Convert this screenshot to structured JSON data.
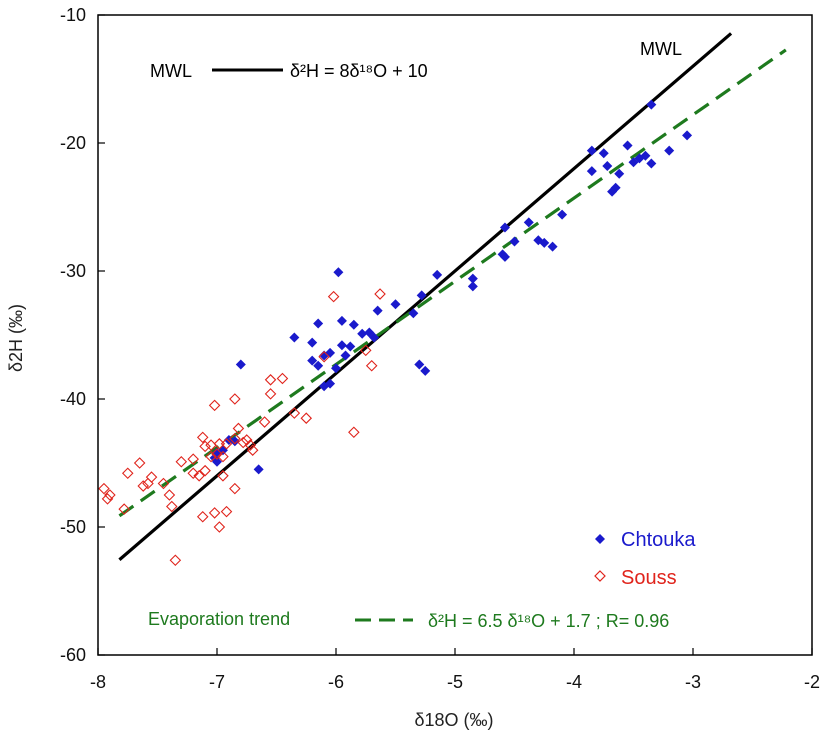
{
  "chart_data": {
    "type": "scatter",
    "xlabel": "δ18O (‰)",
    "ylabel": "δ2H (‰)",
    "xlim": [
      -8,
      -2
    ],
    "ylim": [
      -60,
      -10
    ],
    "x_ticks": [
      -8,
      -7,
      -6,
      -5,
      -4,
      -3,
      -2
    ],
    "y_ticks": [
      -60,
      -50,
      -40,
      -30,
      -20,
      -10
    ],
    "x_tick_labels": [
      "-8",
      "-7",
      "-6",
      "-5",
      "-4",
      "-3",
      "-2"
    ],
    "y_tick_labels": [
      "-60",
      "-50",
      "-40",
      "-30",
      "-20",
      "-10"
    ],
    "grid": false,
    "legend_position": "bottom-right",
    "series": [
      {
        "name": "Chtouka",
        "marker": "filled-diamond",
        "color": "#1a1acc",
        "points": [
          [
            -3.35,
            -17.0
          ],
          [
            -3.05,
            -19.4
          ],
          [
            -3.85,
            -20.6
          ],
          [
            -3.55,
            -20.2
          ],
          [
            -3.75,
            -20.8
          ],
          [
            -3.45,
            -21.2
          ],
          [
            -3.5,
            -21.5
          ],
          [
            -3.4,
            -21.0
          ],
          [
            -3.2,
            -20.6
          ],
          [
            -3.35,
            -21.6
          ],
          [
            -3.72,
            -21.8
          ],
          [
            -3.85,
            -22.2
          ],
          [
            -3.62,
            -22.4
          ],
          [
            -3.65,
            -23.5
          ],
          [
            -3.68,
            -23.8
          ],
          [
            -4.1,
            -25.6
          ],
          [
            -4.25,
            -27.8
          ],
          [
            -4.3,
            -27.6
          ],
          [
            -4.18,
            -28.1
          ],
          [
            -4.5,
            -27.7
          ],
          [
            -4.38,
            -26.2
          ],
          [
            -4.58,
            -26.6
          ],
          [
            -4.6,
            -28.7
          ],
          [
            -4.58,
            -28.9
          ],
          [
            -4.85,
            -30.6
          ],
          [
            -4.85,
            -31.2
          ],
          [
            -5.15,
            -30.3
          ],
          [
            -5.28,
            -31.9
          ],
          [
            -5.35,
            -33.3
          ],
          [
            -5.5,
            -32.6
          ],
          [
            -5.3,
            -37.3
          ],
          [
            -5.25,
            -37.8
          ],
          [
            -5.65,
            -33.1
          ],
          [
            -5.72,
            -34.8
          ],
          [
            -5.78,
            -34.9
          ],
          [
            -5.68,
            -35.2
          ],
          [
            -5.85,
            -34.2
          ],
          [
            -5.95,
            -33.9
          ],
          [
            -5.98,
            -30.1
          ],
          [
            -6.15,
            -34.1
          ],
          [
            -6.2,
            -35.6
          ],
          [
            -6.35,
            -35.2
          ],
          [
            -5.95,
            -35.8
          ],
          [
            -5.88,
            -35.9
          ],
          [
            -5.92,
            -36.6
          ],
          [
            -6.05,
            -36.4
          ],
          [
            -6.1,
            -36.6
          ],
          [
            -6.2,
            -37.0
          ],
          [
            -6.15,
            -37.4
          ],
          [
            -6.0,
            -37.6
          ],
          [
            -6.05,
            -38.8
          ],
          [
            -6.1,
            -39.0
          ],
          [
            -6.8,
            -37.3
          ],
          [
            -6.65,
            -45.5
          ],
          [
            -6.85,
            -43.3
          ],
          [
            -6.9,
            -43.2
          ],
          [
            -6.95,
            -44.0
          ],
          [
            -7.0,
            -44.2
          ],
          [
            -7.02,
            -44.6
          ],
          [
            -7.0,
            -44.9
          ]
        ]
      },
      {
        "name": "Souss",
        "marker": "open-diamond",
        "color": "#e0241c",
        "points": [
          [
            -5.63,
            -31.8
          ],
          [
            -6.02,
            -32.0
          ],
          [
            -5.75,
            -36.2
          ],
          [
            -5.7,
            -37.4
          ],
          [
            -5.85,
            -42.6
          ],
          [
            -6.1,
            -36.7
          ],
          [
            -6.45,
            -38.4
          ],
          [
            -6.55,
            -38.5
          ],
          [
            -6.55,
            -39.6
          ],
          [
            -6.35,
            -41.1
          ],
          [
            -6.25,
            -41.5
          ],
          [
            -6.6,
            -41.8
          ],
          [
            -6.85,
            -40.0
          ],
          [
            -7.02,
            -40.5
          ],
          [
            -6.82,
            -42.3
          ],
          [
            -6.85,
            -43.1
          ],
          [
            -6.78,
            -43.4
          ],
          [
            -6.72,
            -43.6
          ],
          [
            -6.7,
            -44.0
          ],
          [
            -6.75,
            -43.2
          ],
          [
            -6.92,
            -43.5
          ],
          [
            -6.98,
            -43.5
          ],
          [
            -7.05,
            -43.6
          ],
          [
            -7.1,
            -43.7
          ],
          [
            -7.12,
            -43.0
          ],
          [
            -7.0,
            -44.3
          ],
          [
            -6.95,
            -44.5
          ],
          [
            -7.05,
            -44.5
          ],
          [
            -7.1,
            -45.6
          ],
          [
            -7.2,
            -44.7
          ],
          [
            -7.3,
            -44.9
          ],
          [
            -7.2,
            -45.8
          ],
          [
            -7.15,
            -46.0
          ],
          [
            -6.95,
            -46.0
          ],
          [
            -6.85,
            -47.0
          ],
          [
            -7.45,
            -46.6
          ],
          [
            -7.55,
            -46.1
          ],
          [
            -7.58,
            -46.6
          ],
          [
            -7.65,
            -45.0
          ],
          [
            -7.75,
            -45.8
          ],
          [
            -7.62,
            -46.8
          ],
          [
            -7.4,
            -47.5
          ],
          [
            -7.38,
            -48.4
          ],
          [
            -7.78,
            -48.6
          ],
          [
            -7.9,
            -47.5
          ],
          [
            -7.92,
            -47.8
          ],
          [
            -7.95,
            -47.0
          ],
          [
            -7.12,
            -49.2
          ],
          [
            -7.02,
            -48.9
          ],
          [
            -6.92,
            -48.8
          ],
          [
            -6.98,
            -50.0
          ],
          [
            -7.35,
            -52.6
          ]
        ]
      }
    ],
    "lines": [
      {
        "name": "MWL",
        "style": "solid",
        "color": "#000000",
        "slope": 8,
        "intercept": 10,
        "x_range": [
          -7.82,
          -2.68
        ]
      },
      {
        "name": "Evaporation trend",
        "style": "dashed",
        "color": "#1e7a1e",
        "slope": 6.5,
        "intercept": 1.7,
        "x_range": [
          -7.82,
          -2.22
        ]
      }
    ]
  },
  "labels": {
    "mwl_end_label": "MWL",
    "mwl_legend_label": "MWL",
    "mwl_equation": "δ²H = 8δ¹⁸O + 10",
    "evap_label": "Evaporation trend",
    "evap_equation": "δ²H = 6.5 δ¹⁸O + 1.7 ; R= 0.96",
    "legend_chtouka": "Chtouka",
    "legend_souss": "Souss"
  }
}
